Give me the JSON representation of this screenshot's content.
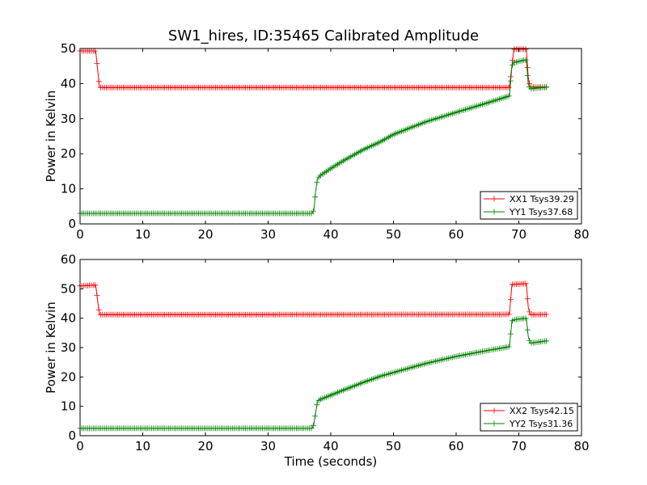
{
  "figure": {
    "title": "SW1_hires, ID:35465 Calibrated Amplitude"
  },
  "chart_data": [
    {
      "type": "line",
      "title": "SW1_hires, ID:35465 Calibrated Amplitude",
      "xlabel": "",
      "ylabel": "Power in Kelvin",
      "xlim": [
        0,
        80
      ],
      "ylim": [
        0,
        50
      ],
      "xticks": [
        "0",
        "10",
        "20",
        "30",
        "40",
        "50",
        "60",
        "70",
        "80"
      ],
      "yticks": [
        "0",
        "10",
        "20",
        "30",
        "40",
        "50"
      ],
      "legend_position": "lower-right",
      "grid": false,
      "marker": "+",
      "series": [
        {
          "name": "XX1 Tsys39.29",
          "color": "#ff0000",
          "points": [
            [
              0,
              49.3
            ],
            [
              2.5,
              49.3
            ],
            [
              2.8,
              44
            ],
            [
              3.1,
              38.9
            ],
            [
              68.5,
              38.9
            ],
            [
              68.9,
              45
            ],
            [
              69.2,
              49.8
            ],
            [
              71.2,
              49.8
            ],
            [
              71.5,
              42
            ],
            [
              71.8,
              39
            ],
            [
              74.5,
              39
            ]
          ]
        },
        {
          "name": "YY1 Tsys37.68",
          "color": "#008000",
          "points": [
            [
              0,
              3
            ],
            [
              37.0,
              3
            ],
            [
              37.3,
              4
            ],
            [
              37.6,
              9.5
            ],
            [
              37.9,
              13
            ],
            [
              38.5,
              14
            ],
            [
              40,
              15.8
            ],
            [
              42,
              18
            ],
            [
              45,
              21
            ],
            [
              48,
              23.5
            ],
            [
              50,
              25.5
            ],
            [
              55,
              29
            ],
            [
              60,
              31.8
            ],
            [
              65,
              34.5
            ],
            [
              68.5,
              36.5
            ],
            [
              68.9,
              45
            ],
            [
              69.2,
              46
            ],
            [
              71.2,
              46.8
            ],
            [
              71.5,
              40
            ],
            [
              71.8,
              38.5
            ],
            [
              74.5,
              39
            ]
          ]
        }
      ]
    },
    {
      "type": "line",
      "title": "",
      "xlabel": "Time (seconds)",
      "ylabel": "Power in Kelvin",
      "xlim": [
        0,
        80
      ],
      "ylim": [
        0,
        60
      ],
      "xticks": [
        "0",
        "10",
        "20",
        "30",
        "40",
        "50",
        "60",
        "70",
        "80"
      ],
      "yticks": [
        "0",
        "10",
        "20",
        "30",
        "40",
        "50",
        "60"
      ],
      "legend_position": "lower-right",
      "grid": false,
      "marker": "+",
      "series": [
        {
          "name": "XX2 Tsys42.15",
          "color": "#ff0000",
          "points": [
            [
              0,
              51
            ],
            [
              2.5,
              51.3
            ],
            [
              2.8,
              46
            ],
            [
              3.1,
              41.2
            ],
            [
              68.5,
              41.3
            ],
            [
              68.9,
              51.5
            ],
            [
              71.2,
              51.8
            ],
            [
              71.5,
              44
            ],
            [
              71.8,
              41.2
            ],
            [
              74.5,
              41.3
            ]
          ]
        },
        {
          "name": "YY2 Tsys31.36",
          "color": "#008000",
          "points": [
            [
              0,
              2.5
            ],
            [
              37.0,
              2.5
            ],
            [
              37.3,
              4
            ],
            [
              37.6,
              8
            ],
            [
              37.9,
              11.8
            ],
            [
              38.5,
              12.5
            ],
            [
              40,
              13.8
            ],
            [
              42,
              15.5
            ],
            [
              45,
              18
            ],
            [
              48,
              20.3
            ],
            [
              50,
              21.5
            ],
            [
              55,
              24.5
            ],
            [
              60,
              27
            ],
            [
              65,
              29
            ],
            [
              68.5,
              30.3
            ],
            [
              68.9,
              39
            ],
            [
              69.2,
              39.5
            ],
            [
              71.2,
              40
            ],
            [
              71.5,
              34
            ],
            [
              71.8,
              31.5
            ],
            [
              74.5,
              32.3
            ]
          ]
        }
      ]
    }
  ]
}
